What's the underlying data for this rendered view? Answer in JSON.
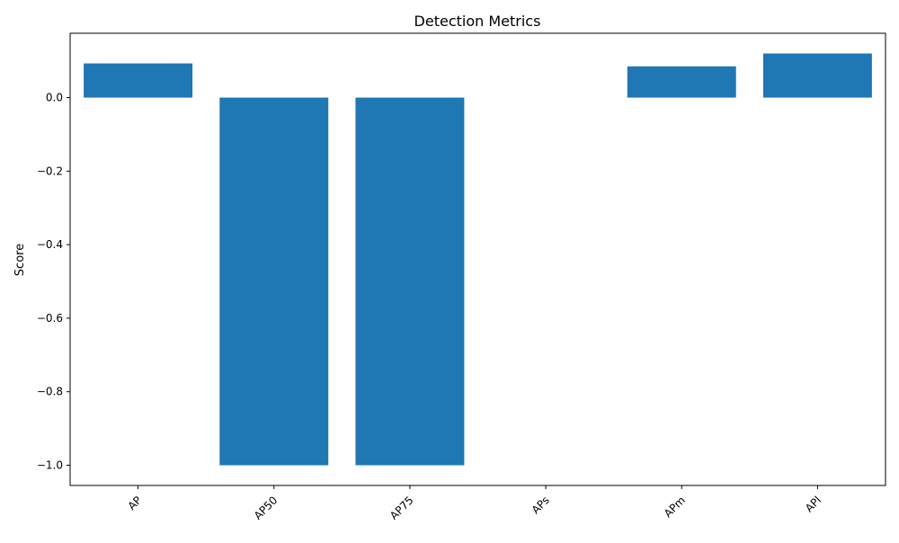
{
  "chart_data": {
    "type": "bar",
    "title": "Detection Metrics",
    "xlabel": "",
    "ylabel": "Score",
    "categories": [
      "AP",
      "AP50",
      "AP75",
      "APs",
      "APm",
      "APl"
    ],
    "values": [
      0.093,
      -1.0,
      -1.0,
      0.0,
      0.085,
      0.12
    ],
    "ylim": [
      -1.055,
      0.175
    ],
    "yticks": [
      0.0,
      -0.2,
      -0.4,
      -0.6,
      -0.8,
      -1.0
    ],
    "ytick_labels": [
      "0.0",
      "−0.2",
      "−0.4",
      "−0.6",
      "−0.8",
      "−1.0"
    ],
    "xtick_rotation": 45,
    "grid": false,
    "legend": "none",
    "bar_color": "#1f77b4"
  }
}
